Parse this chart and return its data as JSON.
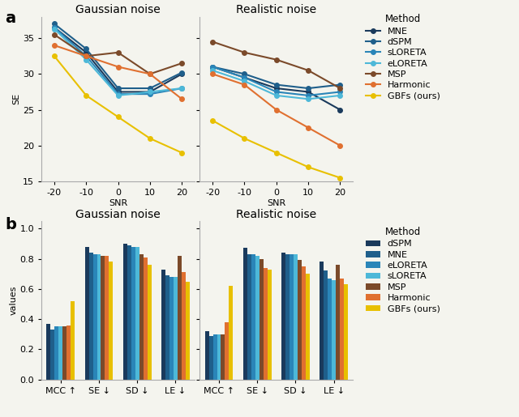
{
  "line_snr": [
    -20,
    -10,
    0,
    10,
    20
  ],
  "line_gaussian": {
    "MNE": [
      36.5,
      33.0,
      27.5,
      27.5,
      30.0
    ],
    "dSPM": [
      37.0,
      33.5,
      28.0,
      28.0,
      30.2
    ],
    "sLORETA": [
      36.5,
      32.5,
      27.2,
      27.2,
      28.0
    ],
    "eLORETA": [
      36.3,
      32.0,
      27.0,
      27.5,
      28.0
    ],
    "MSP": [
      35.5,
      32.5,
      33.0,
      30.0,
      31.5
    ],
    "Harmonic": [
      34.0,
      32.5,
      31.0,
      30.0,
      26.5
    ],
    "GBFs": [
      32.5,
      27.0,
      24.0,
      21.0,
      19.0
    ]
  },
  "line_realistic": {
    "MNE": [
      31.0,
      29.5,
      28.0,
      27.5,
      25.0
    ],
    "dSPM": [
      31.0,
      30.0,
      28.5,
      28.0,
      28.5
    ],
    "sLORETA": [
      31.0,
      29.5,
      27.5,
      27.0,
      27.5
    ],
    "eLORETA": [
      30.5,
      29.0,
      27.0,
      26.5,
      27.0
    ],
    "MSP": [
      34.5,
      33.0,
      32.0,
      30.5,
      28.0
    ],
    "Harmonic": [
      30.0,
      28.5,
      25.0,
      22.5,
      20.0
    ],
    "GBFs": [
      23.5,
      21.0,
      19.0,
      17.0,
      15.5
    ]
  },
  "line_colors": {
    "MNE": "#1a3a5c",
    "dSPM": "#1f5f8b",
    "sLORETA": "#2a85b8",
    "eLORETA": "#4db8d8",
    "MSP": "#7b4a2a",
    "Harmonic": "#e07030",
    "GBFs": "#e8c000"
  },
  "bar_categories": [
    "MCC ↑",
    "SE ↓",
    "SD ↓",
    "LE ↓"
  ],
  "bar_gaussian": {
    "dSPM": [
      0.37,
      0.88,
      0.9,
      0.73
    ],
    "MNE": [
      0.33,
      0.84,
      0.89,
      0.69
    ],
    "eLORETA": [
      0.35,
      0.83,
      0.88,
      0.68
    ],
    "sLORETA": [
      0.35,
      0.83,
      0.88,
      0.68
    ],
    "MSP": [
      0.35,
      0.82,
      0.83,
      0.82
    ],
    "Harmonic": [
      0.36,
      0.82,
      0.81,
      0.71
    ],
    "GBFs": [
      0.52,
      0.78,
      0.76,
      0.65
    ]
  },
  "bar_realistic": {
    "dSPM": [
      0.32,
      0.87,
      0.84,
      0.78
    ],
    "MNE": [
      0.29,
      0.83,
      0.83,
      0.72
    ],
    "eLORETA": [
      0.3,
      0.83,
      0.83,
      0.67
    ],
    "sLORETA": [
      0.3,
      0.82,
      0.83,
      0.66
    ],
    "MSP": [
      0.3,
      0.8,
      0.79,
      0.76
    ],
    "Harmonic": [
      0.38,
      0.74,
      0.75,
      0.67
    ],
    "GBFs": [
      0.62,
      0.73,
      0.7,
      0.63
    ]
  },
  "bar_colors": {
    "dSPM": "#1a3a5c",
    "MNE": "#1f5f8b",
    "eLORETA": "#2a85b8",
    "sLORETA": "#4db8d8",
    "MSP": "#7b4a2a",
    "Harmonic": "#e07030",
    "GBFs": "#e8c000"
  },
  "line_ylim": [
    15,
    38
  ],
  "line_yticks": [
    15,
    20,
    25,
    30,
    35
  ],
  "bg_color": "#f4f4ee",
  "title_fontsize": 10,
  "axis_fontsize": 8,
  "legend_fontsize": 8
}
